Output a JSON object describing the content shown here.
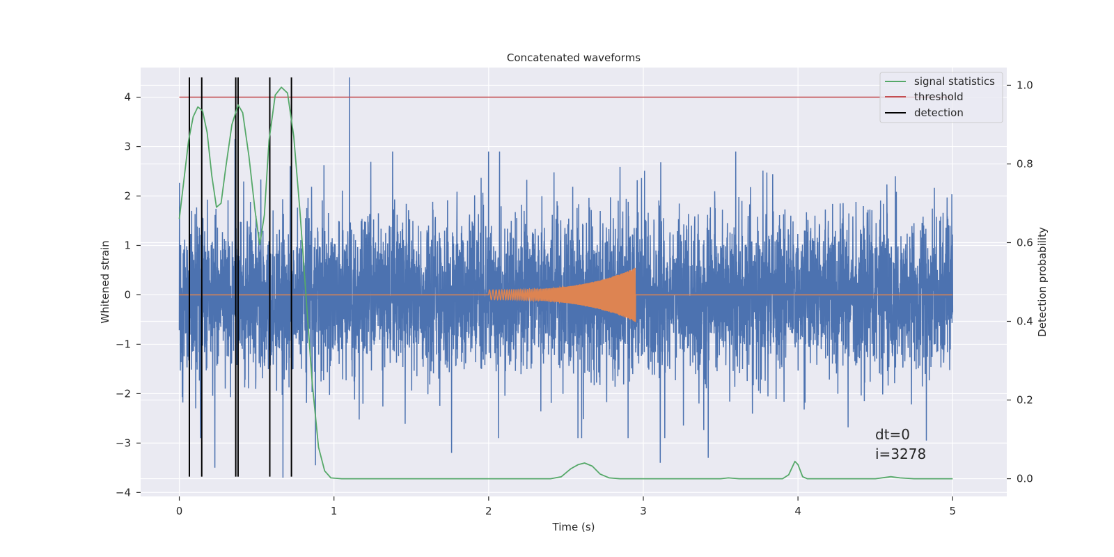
{
  "chart_data": {
    "type": "line",
    "title": "Concatenated waveforms",
    "xlabel": "Time (s)",
    "ylabel_left": "Whitened strain",
    "ylabel_right": "Detection probability",
    "xlim": [
      -0.25,
      5.35
    ],
    "ylim_left": [
      -4.08,
      4.6
    ],
    "ylim_right": [
      -0.045,
      1.045
    ],
    "x_ticks": [
      "0",
      "1",
      "2",
      "3",
      "4",
      "5"
    ],
    "y_ticks_left": [
      "4",
      "3",
      "2",
      "1",
      "0",
      "−1",
      "−2",
      "−3",
      "−4"
    ],
    "y_ticks_right": [
      "1.0",
      "0.8",
      "0.6",
      "0.4",
      "0.2",
      "0.0"
    ],
    "grid": true,
    "legend_position": "top-right",
    "legend": [
      {
        "label": "signal statistics",
        "color": "#55a868"
      },
      {
        "label": "threshold",
        "color": "#c44e52"
      },
      {
        "label": "detection",
        "color": "#000000"
      }
    ],
    "annotation": {
      "line1": "dt=0",
      "line2": "i=3278",
      "x": 4.5,
      "y": -3.2
    },
    "series": [
      {
        "name": "",
        "axis": "left",
        "color": "#4c72b0",
        "description_kind": "whitened noise strain",
        "x_range": [
          0,
          5
        ],
        "envelope_peaks": [
          {
            "x": 1.1,
            "y": 4.4
          },
          {
            "x": 0.36,
            "y": 3.15
          },
          {
            "x": 0.88,
            "y": -3.45
          },
          {
            "x": 0.23,
            "y": -3.5
          },
          {
            "x": 0.67,
            "y": -3.7
          },
          {
            "x": 3.11,
            "y": -3.4
          },
          {
            "x": 4.83,
            "y": -2.95
          },
          {
            "x": 1.76,
            "y": -3.2
          },
          {
            "x": 3.42,
            "y": -3.3
          }
        ]
      },
      {
        "name": "",
        "axis": "left",
        "color": "#dd8452",
        "x_start": 2.0,
        "x_end": 2.95,
        "amplitude_start": 0.1,
        "amplitude_end": 0.55
      },
      {
        "name": "signal statistics",
        "axis": "right",
        "color": "#55a868",
        "points": [
          [
            0.0,
            0.66
          ],
          [
            0.03,
            0.76
          ],
          [
            0.06,
            0.86
          ],
          [
            0.09,
            0.92
          ],
          [
            0.12,
            0.945
          ],
          [
            0.15,
            0.935
          ],
          [
            0.18,
            0.88
          ],
          [
            0.21,
            0.77
          ],
          [
            0.24,
            0.69
          ],
          [
            0.27,
            0.7
          ],
          [
            0.3,
            0.79
          ],
          [
            0.34,
            0.9
          ],
          [
            0.38,
            0.95
          ],
          [
            0.41,
            0.93
          ],
          [
            0.45,
            0.82
          ],
          [
            0.49,
            0.68
          ],
          [
            0.52,
            0.595
          ],
          [
            0.55,
            0.67
          ],
          [
            0.58,
            0.86
          ],
          [
            0.62,
            0.975
          ],
          [
            0.66,
            0.995
          ],
          [
            0.7,
            0.98
          ],
          [
            0.74,
            0.87
          ],
          [
            0.78,
            0.68
          ],
          [
            0.82,
            0.46
          ],
          [
            0.86,
            0.24
          ],
          [
            0.9,
            0.08
          ],
          [
            0.94,
            0.02
          ],
          [
            0.98,
            0.002
          ],
          [
            1.05,
            0.0
          ],
          [
            2.4,
            0.0
          ],
          [
            2.47,
            0.005
          ],
          [
            2.53,
            0.025
          ],
          [
            2.58,
            0.036
          ],
          [
            2.62,
            0.04
          ],
          [
            2.67,
            0.032
          ],
          [
            2.72,
            0.012
          ],
          [
            2.78,
            0.002
          ],
          [
            2.85,
            0.0
          ],
          [
            3.5,
            0.0
          ],
          [
            3.55,
            0.002
          ],
          [
            3.62,
            0.0
          ],
          [
            3.9,
            0.0
          ],
          [
            3.94,
            0.01
          ],
          [
            3.98,
            0.044
          ],
          [
            4.0,
            0.036
          ],
          [
            4.03,
            0.005
          ],
          [
            4.06,
            0.0
          ],
          [
            4.5,
            0.0
          ],
          [
            4.6,
            0.005
          ],
          [
            4.66,
            0.002
          ],
          [
            4.75,
            0.0
          ],
          [
            5.0,
            0.0
          ]
        ]
      },
      {
        "name": "threshold",
        "axis": "left",
        "color": "#c44e52",
        "x": [
          0,
          5
        ],
        "y": [
          4.0,
          4.0
        ]
      },
      {
        "name": "detection",
        "axis": "left",
        "color": "#000000",
        "x_positions": [
          0.065,
          0.145,
          0.365,
          0.38,
          0.585,
          0.725
        ],
        "y_range": [
          -3.68,
          4.4
        ]
      }
    ]
  }
}
